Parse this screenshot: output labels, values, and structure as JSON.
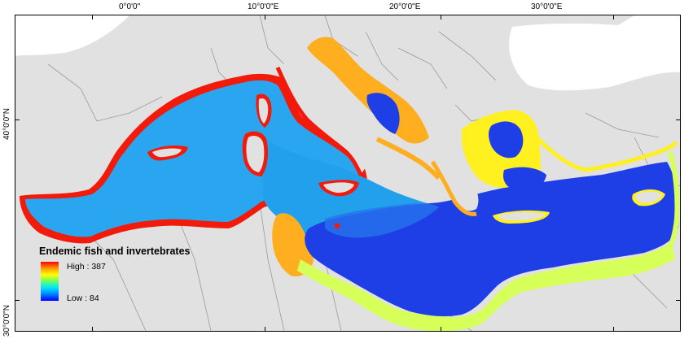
{
  "map": {
    "legend": {
      "title": "Endemic fish and invertebrates",
      "high_label": "High : 387",
      "low_label": "Low : 84",
      "high_value": 387,
      "low_value": 84,
      "ramp_colors": [
        "#ff0000",
        "#ff9900",
        "#ffff00",
        "#66ff66",
        "#00e5ff",
        "#0080ff",
        "#0000ff"
      ]
    },
    "top_ticks": [
      "0°0'0\"",
      "10°0'0\"E",
      "20°0'0\"E",
      "30°0'0\"E"
    ],
    "left_ticks": [
      "40°0'0\"N",
      "30°0'0\"N"
    ],
    "colors": {
      "land": "#e1e1e1",
      "border": "#9a9a9a",
      "sea_west": "#2aa6f0",
      "sea_east": "#1f3fe6",
      "coast_high": "#f21a0a",
      "adriatic": "#ffae20",
      "aegean": "#fff020",
      "african_coast": "#d6ff5a"
    }
  }
}
